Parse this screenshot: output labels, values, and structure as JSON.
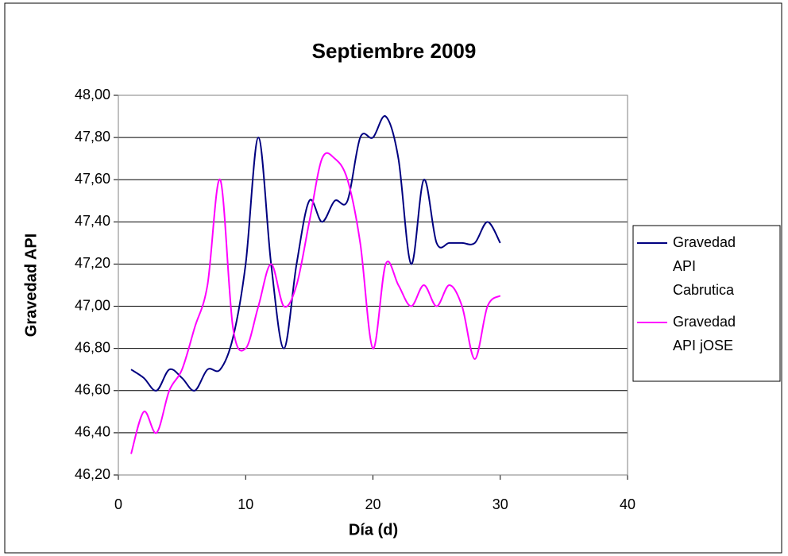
{
  "chart_data": {
    "type": "line",
    "title": "Septiembre 2009",
    "xlabel": "Día (d)",
    "ylabel": "Gravedad API",
    "x": [
      1,
      2,
      3,
      4,
      5,
      6,
      7,
      8,
      9,
      10,
      11,
      12,
      13,
      14,
      15,
      16,
      17,
      18,
      19,
      20,
      21,
      22,
      23,
      24,
      25,
      26,
      27,
      28,
      29,
      30
    ],
    "series": [
      {
        "name": "Gravedad API Cabrutica",
        "color": "#000080",
        "values": [
          46.7,
          46.66,
          46.6,
          46.7,
          46.66,
          46.6,
          46.7,
          46.7,
          46.85,
          47.2,
          47.8,
          47.2,
          46.8,
          47.2,
          47.5,
          47.4,
          47.5,
          47.5,
          47.8,
          47.8,
          47.9,
          47.7,
          47.2,
          47.6,
          47.3,
          47.3,
          47.3,
          47.3,
          47.4,
          47.3
        ]
      },
      {
        "name": "Gravedad API jOSE",
        "color": "#ff00ff",
        "values": [
          46.3,
          46.5,
          46.4,
          46.6,
          46.7,
          46.9,
          47.1,
          47.6,
          46.9,
          46.8,
          47.0,
          47.2,
          47.0,
          47.1,
          47.4,
          47.7,
          47.7,
          47.6,
          47.3,
          46.8,
          47.2,
          47.1,
          47.0,
          47.1,
          47.0,
          47.1,
          47.0,
          46.75,
          47.0,
          47.05
        ]
      }
    ],
    "xlim": [
      0,
      40
    ],
    "xticks": [
      0,
      10,
      20,
      30,
      40
    ],
    "ylim": [
      46.2,
      48.0
    ],
    "yticks": [
      {
        "value": 46.2,
        "label": "46,20"
      },
      {
        "value": 46.4,
        "label": "46,40"
      },
      {
        "value": 46.6,
        "label": "46,60"
      },
      {
        "value": 46.8,
        "label": "46,80"
      },
      {
        "value": 47.0,
        "label": "47,00"
      },
      {
        "value": 47.2,
        "label": "47,20"
      },
      {
        "value": 47.4,
        "label": "47,40"
      },
      {
        "value": 47.6,
        "label": "47,60"
      },
      {
        "value": 47.8,
        "label": "47,80"
      },
      {
        "value": 48.0,
        "label": "48,00"
      }
    ],
    "grid": true,
    "smooth": true,
    "legend": "right"
  }
}
